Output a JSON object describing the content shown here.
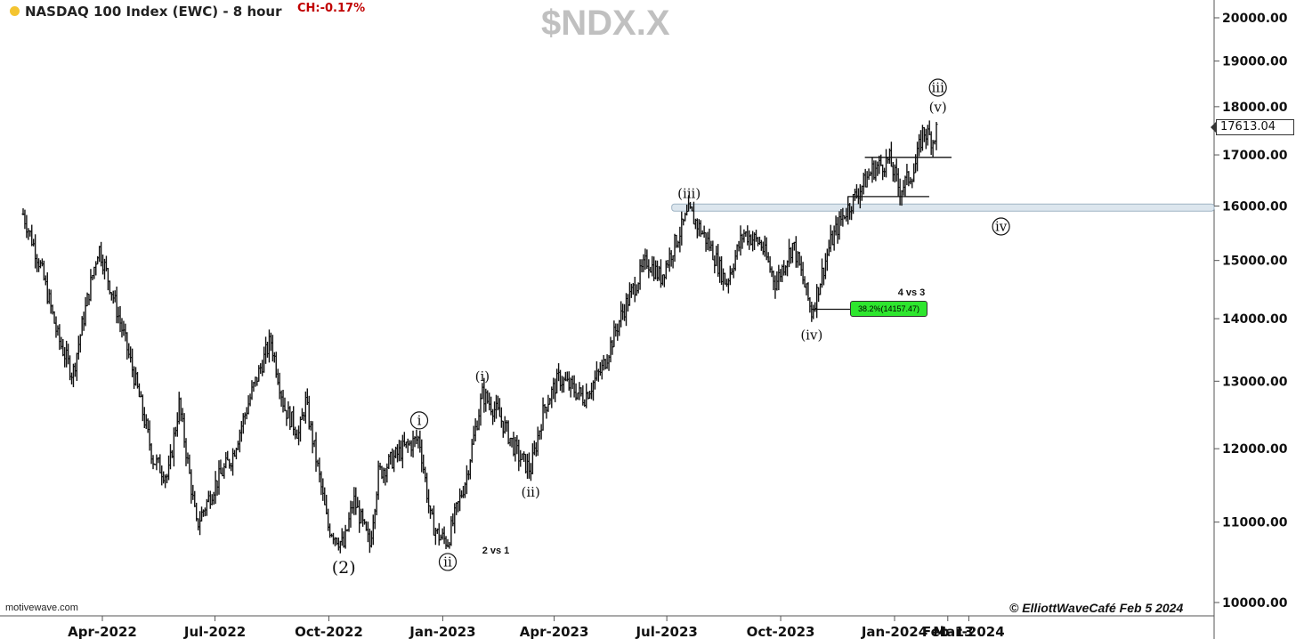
{
  "header": {
    "title": "NASDAQ 100 Index (EWC) - 8 hour",
    "change": "CH:-0.17%",
    "symbol": "$NDX.X",
    "last_price": "17613.04"
  },
  "watermarks": {
    "source": "motivewave.com",
    "credit": "© ElliottWaveCafé Feb 5 2024"
  },
  "colors": {
    "bars": "#111111",
    "change": "#c00000",
    "fib_fill": "#2ee62e",
    "support_band": "#dce6ee"
  },
  "chart_data": {
    "type": "bar",
    "title": "$NDX.X",
    "scale": "log",
    "ylim": [
      9900,
      20700
    ],
    "y_ticks": [
      "20000.00",
      "19000.00",
      "18000.00",
      "17000.00",
      "16000.00",
      "15000.00",
      "14000.00",
      "13000.00",
      "12000.00",
      "11000.00",
      "10000.00"
    ],
    "x_ticks": [
      "Apr-2022",
      "Jul-2022",
      "Oct-2022",
      "Jan-2023",
      "Apr-2023",
      "Jul-2023",
      "Oct-2023",
      "Jan-2024",
      "Feb-13",
      "Mar-2024"
    ],
    "price_path": [
      [
        "2022-01-27",
        15850
      ],
      [
        "2022-02-10",
        14900
      ],
      [
        "2022-02-24",
        13700
      ],
      [
        "2022-03-08",
        13100
      ],
      [
        "2022-03-29",
        15250
      ],
      [
        "2022-04-12",
        14200
      ],
      [
        "2022-04-29",
        12900
      ],
      [
        "2022-05-12",
        11850
      ],
      [
        "2022-05-24",
        11600
      ],
      [
        "2022-06-02",
        12650
      ],
      [
        "2022-06-16",
        10950
      ],
      [
        "2022-07-01",
        11500
      ],
      [
        "2022-07-15",
        11900
      ],
      [
        "2022-08-01",
        12900
      ],
      [
        "2022-08-15",
        13650
      ],
      [
        "2022-08-26",
        12600
      ],
      [
        "2022-09-07",
        12200
      ],
      [
        "2022-09-12",
        12700
      ],
      [
        "2022-09-30",
        10950
      ],
      [
        "2022-10-13",
        10690
      ],
      [
        "2022-10-21",
        11300
      ],
      [
        "2022-11-03",
        10700
      ],
      [
        "2022-11-10",
        11650
      ],
      [
        "2022-11-30",
        12000
      ],
      [
        "2022-12-13",
        12150
      ],
      [
        "2022-12-22",
        11050
      ],
      [
        "2022-12-28",
        10830
      ],
      [
        "2023-01-05",
        10750
      ],
      [
        "2023-01-20",
        11600
      ],
      [
        "2023-02-02",
        12800
      ],
      [
        "2023-02-15",
        12500
      ],
      [
        "2023-03-03",
        11900
      ],
      [
        "2023-03-13",
        11700
      ],
      [
        "2023-03-24",
        12600
      ],
      [
        "2023-04-05",
        13050
      ],
      [
        "2023-04-25",
        12750
      ],
      [
        "2023-05-10",
        13200
      ],
      [
        "2023-05-26",
        14100
      ],
      [
        "2023-06-15",
        15000
      ],
      [
        "2023-06-26",
        14700
      ],
      [
        "2023-07-19",
        15900
      ],
      [
        "2023-08-04",
        15300
      ],
      [
        "2023-08-18",
        14600
      ],
      [
        "2023-09-01",
        15500
      ],
      [
        "2023-09-15",
        15300
      ],
      [
        "2023-09-27",
        14600
      ],
      [
        "2023-10-11",
        15300
      ],
      [
        "2023-10-26",
        14100
      ],
      [
        "2023-11-10",
        15300
      ],
      [
        "2023-11-20",
        15800
      ],
      [
        "2023-12-14",
        16700
      ],
      [
        "2023-12-28",
        16900
      ],
      [
        "2024-01-05",
        16300
      ],
      [
        "2024-01-17",
        16700
      ],
      [
        "2024-01-24",
        17500
      ],
      [
        "2024-02-01",
        17300
      ],
      [
        "2024-02-05",
        17613
      ]
    ],
    "wave_labels": [
      {
        "label": "(2)",
        "date": "2022-10-13",
        "price": 10690,
        "pos": "below",
        "style": "plain"
      },
      {
        "label": "i",
        "date": "2022-12-13",
        "price": 12150,
        "pos": "above",
        "style": "circled"
      },
      {
        "label": "ii",
        "date": "2023-01-05",
        "price": 10750,
        "pos": "below",
        "style": "circled"
      },
      {
        "label": "(i)",
        "date": "2023-02-02",
        "price": 12800,
        "pos": "above",
        "style": "plain"
      },
      {
        "label": "(ii)",
        "date": "2023-03-13",
        "price": 11700,
        "pos": "below",
        "style": "plain"
      },
      {
        "label": "(iii)",
        "date": "2023-07-19",
        "price": 15900,
        "pos": "above",
        "style": "plain"
      },
      {
        "label": "(iv)",
        "date": "2023-10-26",
        "price": 14100,
        "pos": "below",
        "style": "plain"
      },
      {
        "label": "(v)",
        "date": "2024-02-05",
        "price": 17613,
        "pos": "above",
        "style": "plain"
      },
      {
        "label": "iii",
        "date": "2024-02-05",
        "price": 17613,
        "pos": "above2",
        "style": "circled"
      },
      {
        "label": "iv",
        "date": "2024-03-27",
        "price": 16000,
        "pos": "below",
        "style": "circled"
      }
    ],
    "notes": [
      "2 vs 1",
      "4 vs 3"
    ],
    "fib_level": {
      "label": "38.2%(14157.47)",
      "price": 14157.47
    },
    "support_band": {
      "price": 15970,
      "from": "2023-07-05"
    },
    "h_levels": [
      {
        "price": 16950,
        "from": "2023-12-08",
        "to": "2024-02-16"
      },
      {
        "price": 16180,
        "from": "2023-11-24",
        "to": "2024-01-29"
      }
    ]
  }
}
